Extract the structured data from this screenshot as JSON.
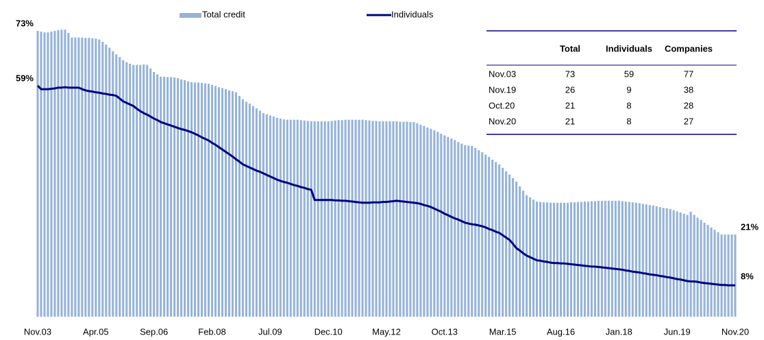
{
  "chart_data": {
    "type": "bar-line",
    "categories": [
      "Nov.03",
      null,
      null,
      null,
      null,
      null,
      null,
      null,
      null,
      null,
      null,
      null,
      null,
      null,
      null,
      null,
      null,
      "Apr.05",
      null,
      null,
      null,
      null,
      null,
      null,
      null,
      null,
      null,
      null,
      null,
      null,
      null,
      null,
      null,
      null,
      "Sep.06",
      null,
      null,
      null,
      null,
      null,
      null,
      null,
      null,
      null,
      null,
      null,
      null,
      null,
      null,
      null,
      null,
      "Feb.08",
      null,
      null,
      null,
      null,
      null,
      null,
      null,
      null,
      null,
      null,
      null,
      null,
      null,
      null,
      null,
      null,
      "Jul.09",
      null,
      null,
      null,
      null,
      null,
      null,
      null,
      null,
      null,
      null,
      null,
      null,
      null,
      null,
      null,
      null,
      "Dec.10",
      null,
      null,
      null,
      null,
      null,
      null,
      null,
      null,
      null,
      null,
      null,
      null,
      null,
      null,
      null,
      null,
      "May.12",
      null,
      null,
      null,
      null,
      null,
      null,
      null,
      null,
      null,
      null,
      null,
      null,
      null,
      null,
      null,
      null,
      "Oct.13",
      null,
      null,
      null,
      null,
      null,
      null,
      null,
      null,
      null,
      null,
      null,
      null,
      null,
      null,
      null,
      null,
      "Mar.15",
      null,
      null,
      null,
      null,
      null,
      null,
      null,
      null,
      null,
      null,
      null,
      null,
      null,
      null,
      null,
      null,
      "Aug.16",
      null,
      null,
      null,
      null,
      null,
      null,
      null,
      null,
      null,
      null,
      null,
      null,
      null,
      null,
      null,
      null,
      "Jan.18",
      null,
      null,
      null,
      null,
      null,
      null,
      null,
      null,
      null,
      null,
      null,
      null,
      null,
      null,
      null,
      null,
      "Jun.19",
      null,
      null,
      null,
      null,
      null,
      null,
      null,
      null,
      null,
      null,
      null,
      null,
      null,
      null,
      null,
      null,
      "Nov.20"
    ],
    "series": [
      {
        "name": "Total credit",
        "kind": "bar",
        "color": "#95b3d7",
        "values": [
          73,
          72.8,
          72.6,
          72.6,
          72.8,
          73,
          73.2,
          73.3,
          73.3,
          72.5,
          71.3,
          71.3,
          71.3,
          71.3,
          71.2,
          71.2,
          71.1,
          71,
          70.8,
          70.2,
          69.5,
          68.7,
          67.8,
          67,
          66.3,
          65.5,
          65,
          64.6,
          64.3,
          64.3,
          64.3,
          64.4,
          64.3,
          63.4,
          62.5,
          61.9,
          61.3,
          61.3,
          61.2,
          61.2,
          61.1,
          60.9,
          60.6,
          60.4,
          60.1,
          59.9,
          59.8,
          59.8,
          59.7,
          59.6,
          59.5,
          59.2,
          58.9,
          58.6,
          58.4,
          58.1,
          57.8,
          57.6,
          57.3,
          56.4,
          55.5,
          54.9,
          54.4,
          53.8,
          53.2,
          52.6,
          52,
          51.7,
          51.4,
          51.1,
          50.8,
          50.6,
          50.4,
          50.3,
          50.3,
          50.3,
          50.3,
          50.2,
          50.1,
          50,
          49.9,
          49.9,
          49.9,
          49.9,
          49.9,
          49.9,
          50,
          50.1,
          50.2,
          50.2,
          50.3,
          50.3,
          50.3,
          50.3,
          50.3,
          50.3,
          50.2,
          50.1,
          50,
          50,
          49.9,
          49.9,
          49.9,
          49.9,
          49.9,
          49.9,
          49.8,
          49.8,
          49.8,
          49.7,
          49.7,
          49.4,
          49,
          48.7,
          48.3,
          48,
          47.6,
          47.2,
          46.7,
          46.3,
          45.9,
          45.5,
          45.1,
          44.6,
          44.2,
          43.8,
          43.7,
          43.6,
          43.1,
          42.5,
          42,
          41.4,
          40.8,
          40.1,
          39.5,
          38.9,
          38,
          37.1,
          36.3,
          35.4,
          34.5,
          33.3,
          32.2,
          31,
          30.5,
          29.9,
          29.4,
          29.3,
          29.2,
          29.2,
          29.1,
          29.1,
          29.1,
          29.1,
          29.1,
          29.1,
          29.2,
          29.2,
          29.3,
          29.3,
          29.4,
          29.4,
          29.5,
          29.5,
          29.6,
          29.6,
          29.6,
          29.6,
          29.6,
          29.6,
          29.6,
          29.5,
          29.4,
          29.3,
          29.2,
          29.1,
          29,
          28.8,
          28.7,
          28.5,
          28.4,
          28.2,
          28,
          27.8,
          27.7,
          27.5,
          27.2,
          26.9,
          26.6,
          26.3,
          26,
          26.8,
          26,
          25.3,
          24.7,
          24,
          23.4,
          22.8,
          22.2,
          21.6,
          21,
          21,
          21,
          21,
          21
        ],
        "value_labels": [
          "73%",
          null,
          null,
          null,
          null,
          null,
          null,
          null,
          null,
          null,
          null,
          null,
          null,
          null,
          null,
          null,
          null,
          null,
          null,
          null,
          null,
          null,
          null,
          null,
          null,
          null,
          null,
          null,
          null,
          null,
          null,
          null,
          null,
          null,
          null,
          null,
          null,
          null,
          null,
          null,
          null,
          null,
          null,
          null,
          null,
          null,
          null,
          null,
          null,
          null,
          null,
          null,
          null,
          null,
          null,
          null,
          null,
          null,
          null,
          null,
          null,
          null,
          null,
          null,
          null,
          null,
          null,
          null,
          null,
          null,
          null,
          null,
          null,
          null,
          null,
          null,
          null,
          null,
          null,
          null,
          null,
          null,
          null,
          null,
          null,
          null,
          null,
          null,
          null,
          null,
          null,
          null,
          null,
          null,
          null,
          null,
          null,
          null,
          null,
          null,
          null,
          null,
          null,
          null,
          null,
          null,
          null,
          null,
          null,
          null,
          null,
          null,
          null,
          null,
          null,
          null,
          null,
          null,
          null,
          null,
          null,
          null,
          null,
          null,
          null,
          null,
          null,
          null,
          null,
          null,
          null,
          null,
          null,
          null,
          null,
          null,
          null,
          null,
          null,
          null,
          null,
          null,
          null,
          null,
          null,
          null,
          null,
          null,
          null,
          null,
          null,
          null,
          null,
          null,
          null,
          null,
          null,
          null,
          null,
          null,
          null,
          null,
          null,
          null,
          null,
          null,
          null,
          null,
          null,
          null,
          null,
          null,
          null,
          null,
          null,
          null,
          null,
          null,
          null,
          null,
          null,
          null,
          null,
          null,
          null,
          null,
          null,
          null,
          null,
          null,
          null,
          null,
          null,
          null,
          null,
          null,
          null,
          null,
          null,
          null,
          null,
          null,
          null,
          null,
          "21%"
        ]
      },
      {
        "name": "Individuals",
        "kind": "line",
        "color": "#000080",
        "values": [
          59,
          58.1,
          58.1,
          58.1,
          58.2,
          58.3,
          58.5,
          58.5,
          58.6,
          58.5,
          58.5,
          58.5,
          58.5,
          58.1,
          57.8,
          57.6,
          57.5,
          57.3,
          57.2,
          57,
          56.9,
          56.7,
          56.6,
          56.4,
          55.7,
          55,
          54.6,
          54.2,
          53.8,
          53.1,
          52.5,
          52,
          51.6,
          51.1,
          50.6,
          50.2,
          49.7,
          49.4,
          49.1,
          48.8,
          48.5,
          48.2,
          47.9,
          47.7,
          47.4,
          47.1,
          46.7,
          46.3,
          45.8,
          45.4,
          45,
          44.4,
          43.9,
          43.3,
          42.7,
          42.1,
          41.5,
          40.9,
          40.2,
          39.6,
          38.9,
          38.5,
          38.1,
          37.7,
          37.3,
          37,
          36.6,
          36.2,
          35.8,
          35.4,
          35,
          34.7,
          34.4,
          34.2,
          33.9,
          33.6,
          33.4,
          33.1,
          32.9,
          32.6,
          32.4,
          29.8,
          29.8,
          29.8,
          29.8,
          29.8,
          29.8,
          29.7,
          29.7,
          29.6,
          29.6,
          29.5,
          29.4,
          29.3,
          29.2,
          29.1,
          29.1,
          29.1,
          29.2,
          29.2,
          29.2,
          29.3,
          29.3,
          29.4,
          29.5,
          29.6,
          29.5,
          29.4,
          29.3,
          29.2,
          29.1,
          29,
          28.8,
          28.5,
          28.3,
          28,
          27.6,
          27.2,
          26.8,
          26.3,
          25.9,
          25.5,
          25.1,
          24.8,
          24.4,
          24,
          23.8,
          23.6,
          23.5,
          23.3,
          23.1,
          22.8,
          22.4,
          22.1,
          21.7,
          21.4,
          20.8,
          20.2,
          19.6,
          18.6,
          17.5,
          16.9,
          16.2,
          15.6,
          15.2,
          14.8,
          14.4,
          14.3,
          14.1,
          14,
          13.8,
          13.7,
          13.7,
          13.6,
          13.6,
          13.5,
          13.4,
          13.3,
          13.2,
          13.1,
          13,
          12.9,
          12.8,
          12.8,
          12.7,
          12.6,
          12.5,
          12.4,
          12.3,
          12.2,
          12.1,
          12,
          11.8,
          11.7,
          11.5,
          11.4,
          11.3,
          11.1,
          11,
          10.8,
          10.7,
          10.6,
          10.4,
          10.3,
          10.1,
          10,
          9.8,
          9.6,
          9.5,
          9.3,
          9.1,
          9,
          9,
          8.9,
          8.7,
          8.6,
          8.5,
          8.4,
          8.3,
          8.2,
          8.1,
          8.1,
          8,
          8,
          8
        ],
        "value_labels": [
          "59%",
          null,
          null,
          null,
          null,
          null,
          null,
          null,
          null,
          null,
          null,
          null,
          null,
          null,
          null,
          null,
          null,
          null,
          null,
          null,
          null,
          null,
          null,
          null,
          null,
          null,
          null,
          null,
          null,
          null,
          null,
          null,
          null,
          null,
          null,
          null,
          null,
          null,
          null,
          null,
          null,
          null,
          null,
          null,
          null,
          null,
          null,
          null,
          null,
          null,
          null,
          null,
          null,
          null,
          null,
          null,
          null,
          null,
          null,
          null,
          null,
          null,
          null,
          null,
          null,
          null,
          null,
          null,
          null,
          null,
          null,
          null,
          null,
          null,
          null,
          null,
          null,
          null,
          null,
          null,
          null,
          null,
          null,
          null,
          null,
          null,
          null,
          null,
          null,
          null,
          null,
          null,
          null,
          null,
          null,
          null,
          null,
          null,
          null,
          null,
          null,
          null,
          null,
          null,
          null,
          null,
          null,
          null,
          null,
          null,
          null,
          null,
          null,
          null,
          null,
          null,
          null,
          null,
          null,
          null,
          null,
          null,
          null,
          null,
          null,
          null,
          null,
          null,
          null,
          null,
          null,
          null,
          null,
          null,
          null,
          null,
          null,
          null,
          null,
          null,
          null,
          null,
          null,
          null,
          null,
          null,
          null,
          null,
          null,
          null,
          null,
          null,
          null,
          null,
          null,
          null,
          null,
          null,
          null,
          null,
          null,
          null,
          null,
          null,
          null,
          null,
          null,
          null,
          null,
          null,
          null,
          null,
          null,
          null,
          null,
          null,
          null,
          null,
          null,
          null,
          null,
          null,
          null,
          null,
          null,
          null,
          null,
          null,
          null,
          null,
          null,
          null,
          null,
          null,
          null,
          null,
          null,
          null,
          null,
          null,
          null,
          null,
          null,
          null,
          "8%"
        ]
      }
    ],
    "ylim": [
      0,
      80
    ],
    "grid": false,
    "legend": "top"
  },
  "table": {
    "columns": [
      "Total",
      "Individuals",
      "Companies"
    ],
    "rows": [
      [
        "Nov.03",
        73,
        59,
        77
      ],
      [
        "Nov.19",
        26,
        9,
        38
      ],
      [
        "Oct.20",
        21,
        8,
        28
      ],
      [
        "Nov.20",
        21,
        8,
        27
      ]
    ]
  }
}
